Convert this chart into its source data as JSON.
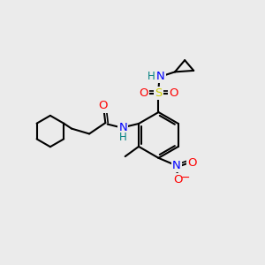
{
  "background_color": "#ebebeb",
  "bond_color": "#000000",
  "atom_colors": {
    "O": "#ff0000",
    "N": "#0000ff",
    "S": "#cccc00",
    "H": "#008080",
    "C": "#000000"
  },
  "figsize": [
    3.0,
    3.0
  ],
  "dpi": 100
}
